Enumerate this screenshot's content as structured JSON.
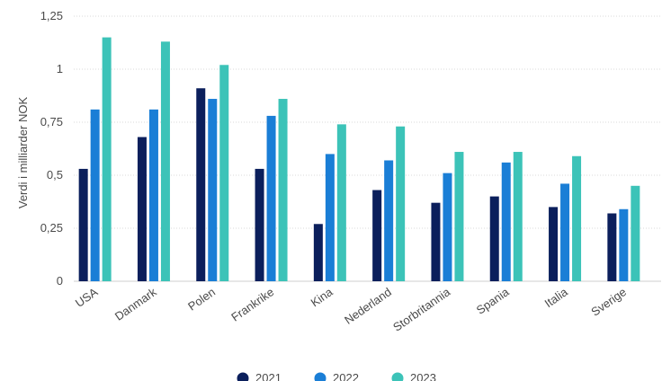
{
  "chart_data": {
    "type": "bar",
    "title": "",
    "xlabel": "",
    "ylabel": "Verdi i milliarder NOK",
    "ylim": [
      0,
      1.25
    ],
    "yticks": [
      0,
      0.25,
      0.5,
      0.75,
      1,
      1.25
    ],
    "ytick_labels": [
      "0",
      "0,25",
      "0,5",
      "0,75",
      "1",
      "1,25"
    ],
    "grid": true,
    "legend_position": "bottom",
    "categories": [
      "USA",
      "Danmark",
      "Polen",
      "Frankrike",
      "Kina",
      "Nederland",
      "Storbritannia",
      "Spania",
      "Italia",
      "Sverige"
    ],
    "series": [
      {
        "name": "2021",
        "color": "#0b1f5c",
        "values": [
          0.53,
          0.68,
          0.91,
          0.53,
          0.27,
          0.43,
          0.37,
          0.4,
          0.35,
          0.32
        ]
      },
      {
        "name": "2022",
        "color": "#1a7ed6",
        "values": [
          0.81,
          0.81,
          0.86,
          0.78,
          0.6,
          0.57,
          0.51,
          0.56,
          0.46,
          0.34
        ]
      },
      {
        "name": "2023",
        "color": "#3cc3b8",
        "values": [
          1.15,
          1.13,
          1.02,
          0.86,
          0.74,
          0.73,
          0.61,
          0.61,
          0.59,
          0.45
        ]
      }
    ]
  }
}
